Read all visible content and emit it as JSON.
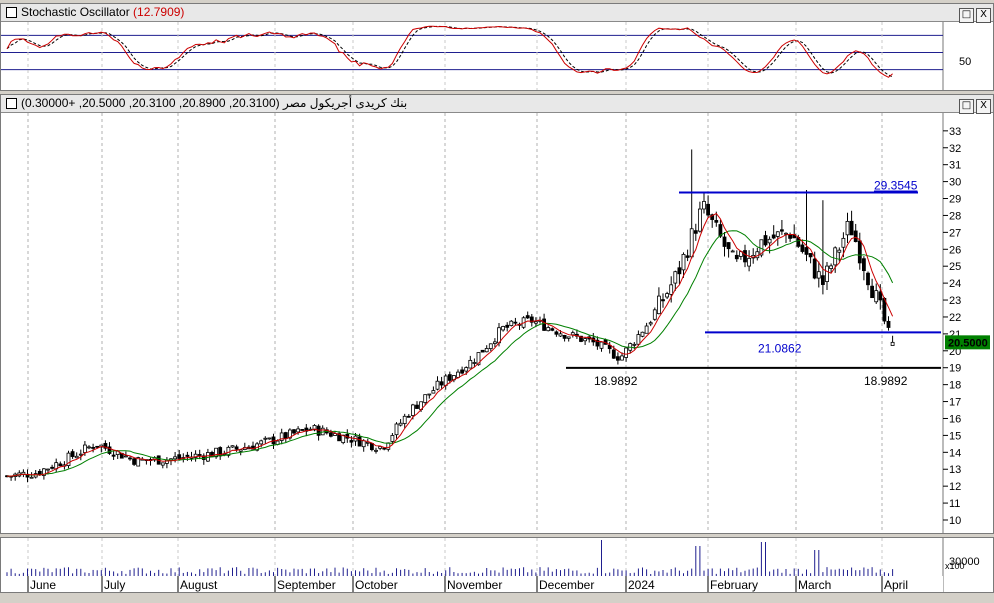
{
  "oscillator_panel": {
    "title": "Stochastic Oscillator",
    "value": "(12.7909)",
    "level_label": "50",
    "window_buttons": [
      "□",
      "X"
    ]
  },
  "price_panel": {
    "title": "بنك كريدى أجريكول مصر",
    "ohlc": "(20.3100, 20.8900, 20.3100, 20.5000, +0.30000)",
    "price_tag": "20.5000",
    "window_buttons": [
      "□",
      "X"
    ],
    "annotations": {
      "resistance_label": "29.3545",
      "support_label": "21.0862",
      "low_left_label": "18.9892",
      "low_right_label": "18.9892"
    }
  },
  "volume_panel": {
    "axis_label": "30000",
    "scale_label": "x100"
  },
  "colors": {
    "candle_up": "#ffffff",
    "candle_down": "#000000",
    "ma_short": "#cc0000",
    "ma_long": "#008000",
    "trend_lines": "#0000cc",
    "support_line": "#000000",
    "price_tag_bg": "#008000"
  },
  "chart_data": {
    "type": "candlestick",
    "title": "بنك كريدى أجريكول مصر",
    "x_months": [
      "June",
      "July",
      "August",
      "September",
      "October",
      "November",
      "December",
      "2024",
      "February",
      "March",
      "April"
    ],
    "y_ticks": [
      10,
      11,
      12,
      13,
      14,
      15,
      16,
      17,
      18,
      19,
      20,
      21,
      22,
      23,
      24,
      25,
      26,
      27,
      28,
      29,
      30,
      31,
      32,
      33
    ],
    "ylim": [
      9,
      34
    ],
    "last": {
      "open": 20.31,
      "high": 20.89,
      "low": 20.31,
      "close": 20.5,
      "change": 0.3
    },
    "levels": {
      "resistance": 29.3545,
      "support": 21.0862,
      "low": 18.9892
    },
    "close_path": [
      {
        "month": "June",
        "close": 12.8
      },
      {
        "month": "June",
        "close": 13.6
      },
      {
        "month": "June",
        "close": 14.5
      },
      {
        "month": "July",
        "close": 13.5
      },
      {
        "month": "July",
        "close": 13.6
      },
      {
        "month": "August",
        "close": 14.0
      },
      {
        "month": "August",
        "close": 14.6
      },
      {
        "month": "September",
        "close": 15.4
      },
      {
        "month": "September",
        "close": 14.9
      },
      {
        "month": "October",
        "close": 14.3
      },
      {
        "month": "October",
        "close": 16.5
      },
      {
        "month": "October",
        "close": 18.0
      },
      {
        "month": "November",
        "close": 19.5
      },
      {
        "month": "November",
        "close": 21.3
      },
      {
        "month": "November",
        "close": 21.8
      },
      {
        "month": "December",
        "close": 21.0
      },
      {
        "month": "December",
        "close": 20.5
      },
      {
        "month": "December",
        "close": 19.6
      },
      {
        "month": "2024",
        "close": 21.9
      },
      {
        "month": "2024",
        "close": 24.5
      },
      {
        "month": "2024",
        "close": 28.5
      },
      {
        "month": "February",
        "close": 25.0
      },
      {
        "month": "February",
        "close": 26.5
      },
      {
        "month": "February",
        "close": 27.0
      },
      {
        "month": "March",
        "close": 24.0
      },
      {
        "month": "March",
        "close": 27.5
      },
      {
        "month": "March",
        "close": 23.0
      },
      {
        "month": "April",
        "close": 20.5
      }
    ],
    "series": [
      {
        "name": "Price",
        "style": "candles"
      },
      {
        "name": "Short MA",
        "color": "#cc0000"
      },
      {
        "name": "Long MA",
        "color": "#008000"
      }
    ],
    "oscillator": {
      "name": "Stochastic Oscillator",
      "value": 12.7909,
      "levels": [
        20,
        50,
        80
      ]
    }
  }
}
